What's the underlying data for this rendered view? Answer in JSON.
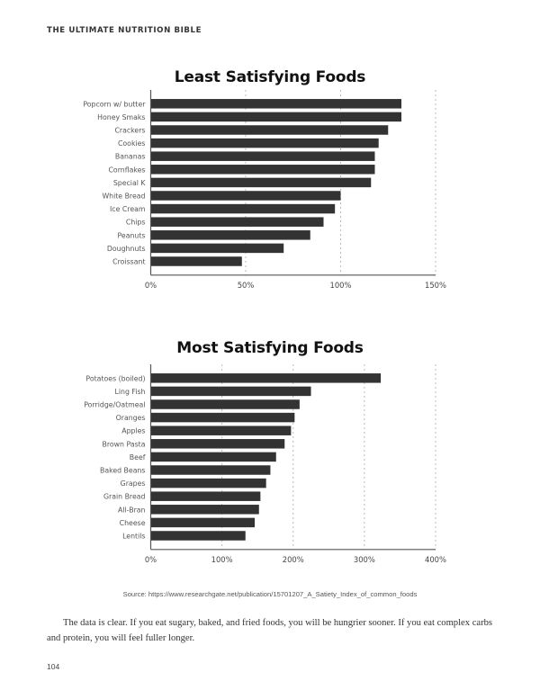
{
  "page": {
    "running_head": "THE ULTIMATE NUTRITION BIBLE",
    "source": "Source: https://www.researchgate.net/publication/15701207_A_Satiety_Index_of_common_foods",
    "body_text": "The data is clear. If you eat sugary, baked, and fried foods, you will be hungrier sooner. If you eat complex carbs and protein, you will feel fuller longer.",
    "page_number": "104",
    "bar_color": "#333333",
    "grid_color": "#bbbbbb"
  },
  "chart_data": [
    {
      "type": "bar",
      "orientation": "horizontal",
      "title": "Least Satisfying Foods",
      "xlabel": "",
      "ylabel": "",
      "xlim": [
        0,
        150
      ],
      "xticks": [
        0,
        50,
        100,
        150
      ],
      "xtick_labels": [
        "0%",
        "50%",
        "100%",
        "150%"
      ],
      "grid": "vertical dashed",
      "categories": [
        "Popcorn w/ butter",
        "Honey Smaks",
        "Crackers",
        "Cookies",
        "Bananas",
        "Cornflakes",
        "Special K",
        "White Bread",
        "Ice Cream",
        "Chips",
        "Peanuts",
        "Doughnuts",
        "Croissant"
      ],
      "values": [
        132,
        132,
        125,
        120,
        118,
        118,
        116,
        100,
        97,
        91,
        84,
        70,
        48
      ]
    },
    {
      "type": "bar",
      "orientation": "horizontal",
      "title": "Most Satisfying Foods",
      "xlabel": "",
      "ylabel": "",
      "xlim": [
        0,
        400
      ],
      "xticks": [
        0,
        100,
        200,
        300,
        400
      ],
      "xtick_labels": [
        "0%",
        "100%",
        "200%",
        "300%",
        "400%"
      ],
      "grid": "vertical dashed",
      "categories": [
        "Potatoes (boiled)",
        "Ling Fish",
        "Porridge/Oatmeal",
        "Oranges",
        "Apples",
        "Brown Pasta",
        "Beef",
        "Baked Beans",
        "Grapes",
        "Grain Bread",
        "All-Bran",
        "Cheese",
        "Lentils"
      ],
      "values": [
        323,
        225,
        209,
        202,
        197,
        188,
        176,
        168,
        162,
        154,
        152,
        146,
        133
      ]
    }
  ]
}
